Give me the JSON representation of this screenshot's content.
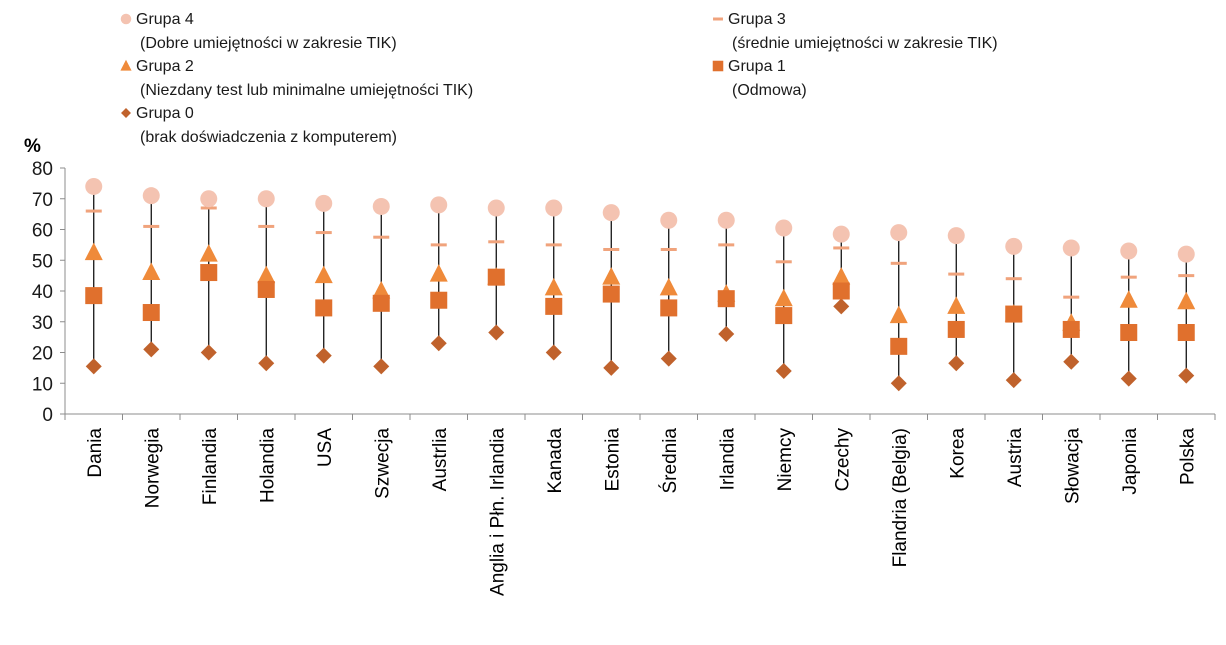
{
  "chart_data": {
    "type": "scatter",
    "y_unit_label": "%",
    "ylim": [
      0,
      80
    ],
    "y_ticks": [
      "0",
      "10",
      "20",
      "30",
      "40",
      "50",
      "60",
      "70",
      "80"
    ],
    "grid": false,
    "legend_position": "top",
    "categories": [
      "Dania",
      "Norwegia",
      "Finlandia",
      "Holandia",
      "USA",
      "Szwecja",
      "Austrlia",
      "Anglia i Płn. Irlandia",
      "Kanada",
      "Estonia",
      "Średnia",
      "Irlandia",
      "Niemcy",
      "Czechy",
      "Flandria (Belgia)",
      "Korea",
      "Austria",
      "Słowacja",
      "Japonia",
      "Polska"
    ],
    "series": [
      {
        "name": "Grupa 4",
        "description": "(Dobre umiejętności w zakresie TIK)",
        "marker": "circle",
        "color": "#f4c3b1",
        "values": [
          74,
          71,
          70,
          70,
          68.5,
          67.5,
          68,
          67,
          67,
          65.5,
          63,
          63,
          60.5,
          58.5,
          59,
          58,
          54.5,
          54,
          53,
          52
        ]
      },
      {
        "name": "Grupa 3",
        "description": "(średnie umiejętności w zakresie TIK)",
        "marker": "dash",
        "color": "#f0a37c",
        "values": [
          66,
          61,
          67,
          61,
          59,
          57.5,
          55,
          56,
          55,
          53.5,
          53.5,
          55,
          49.5,
          54,
          49,
          45.5,
          44,
          38,
          44.5,
          45
        ]
      },
      {
        "name": "Grupa 2",
        "description": "(Niezdany test lub minimalne umiejętności TIK)",
        "marker": "triangle",
        "color": "#ef8a3a",
        "values": [
          52.5,
          46,
          52,
          45,
          45,
          40,
          45.5,
          44.5,
          41,
          44.5,
          41,
          39,
          37.5,
          44.5,
          32,
          35,
          32.5,
          29.5,
          37,
          36.5
        ]
      },
      {
        "name": "Grupa 1",
        "description": "(Odmowa)",
        "marker": "square",
        "color": "#e0702d",
        "values": [
          38.5,
          33,
          46,
          40.5,
          34.5,
          36,
          37,
          44.5,
          35,
          39,
          34.5,
          37.5,
          32,
          40,
          22,
          27.5,
          32.5,
          27.5,
          26.5,
          26.5
        ]
      },
      {
        "name": "Grupa 0",
        "description": "(brak doświadczenia z komputerem)",
        "marker": "diamond",
        "color": "#c0622c",
        "values": [
          15.5,
          21,
          20,
          16.5,
          19,
          15.5,
          23,
          26.5,
          20,
          15,
          18,
          26,
          14,
          35,
          10,
          16.5,
          11,
          17,
          11.5,
          12.5
        ]
      }
    ]
  }
}
